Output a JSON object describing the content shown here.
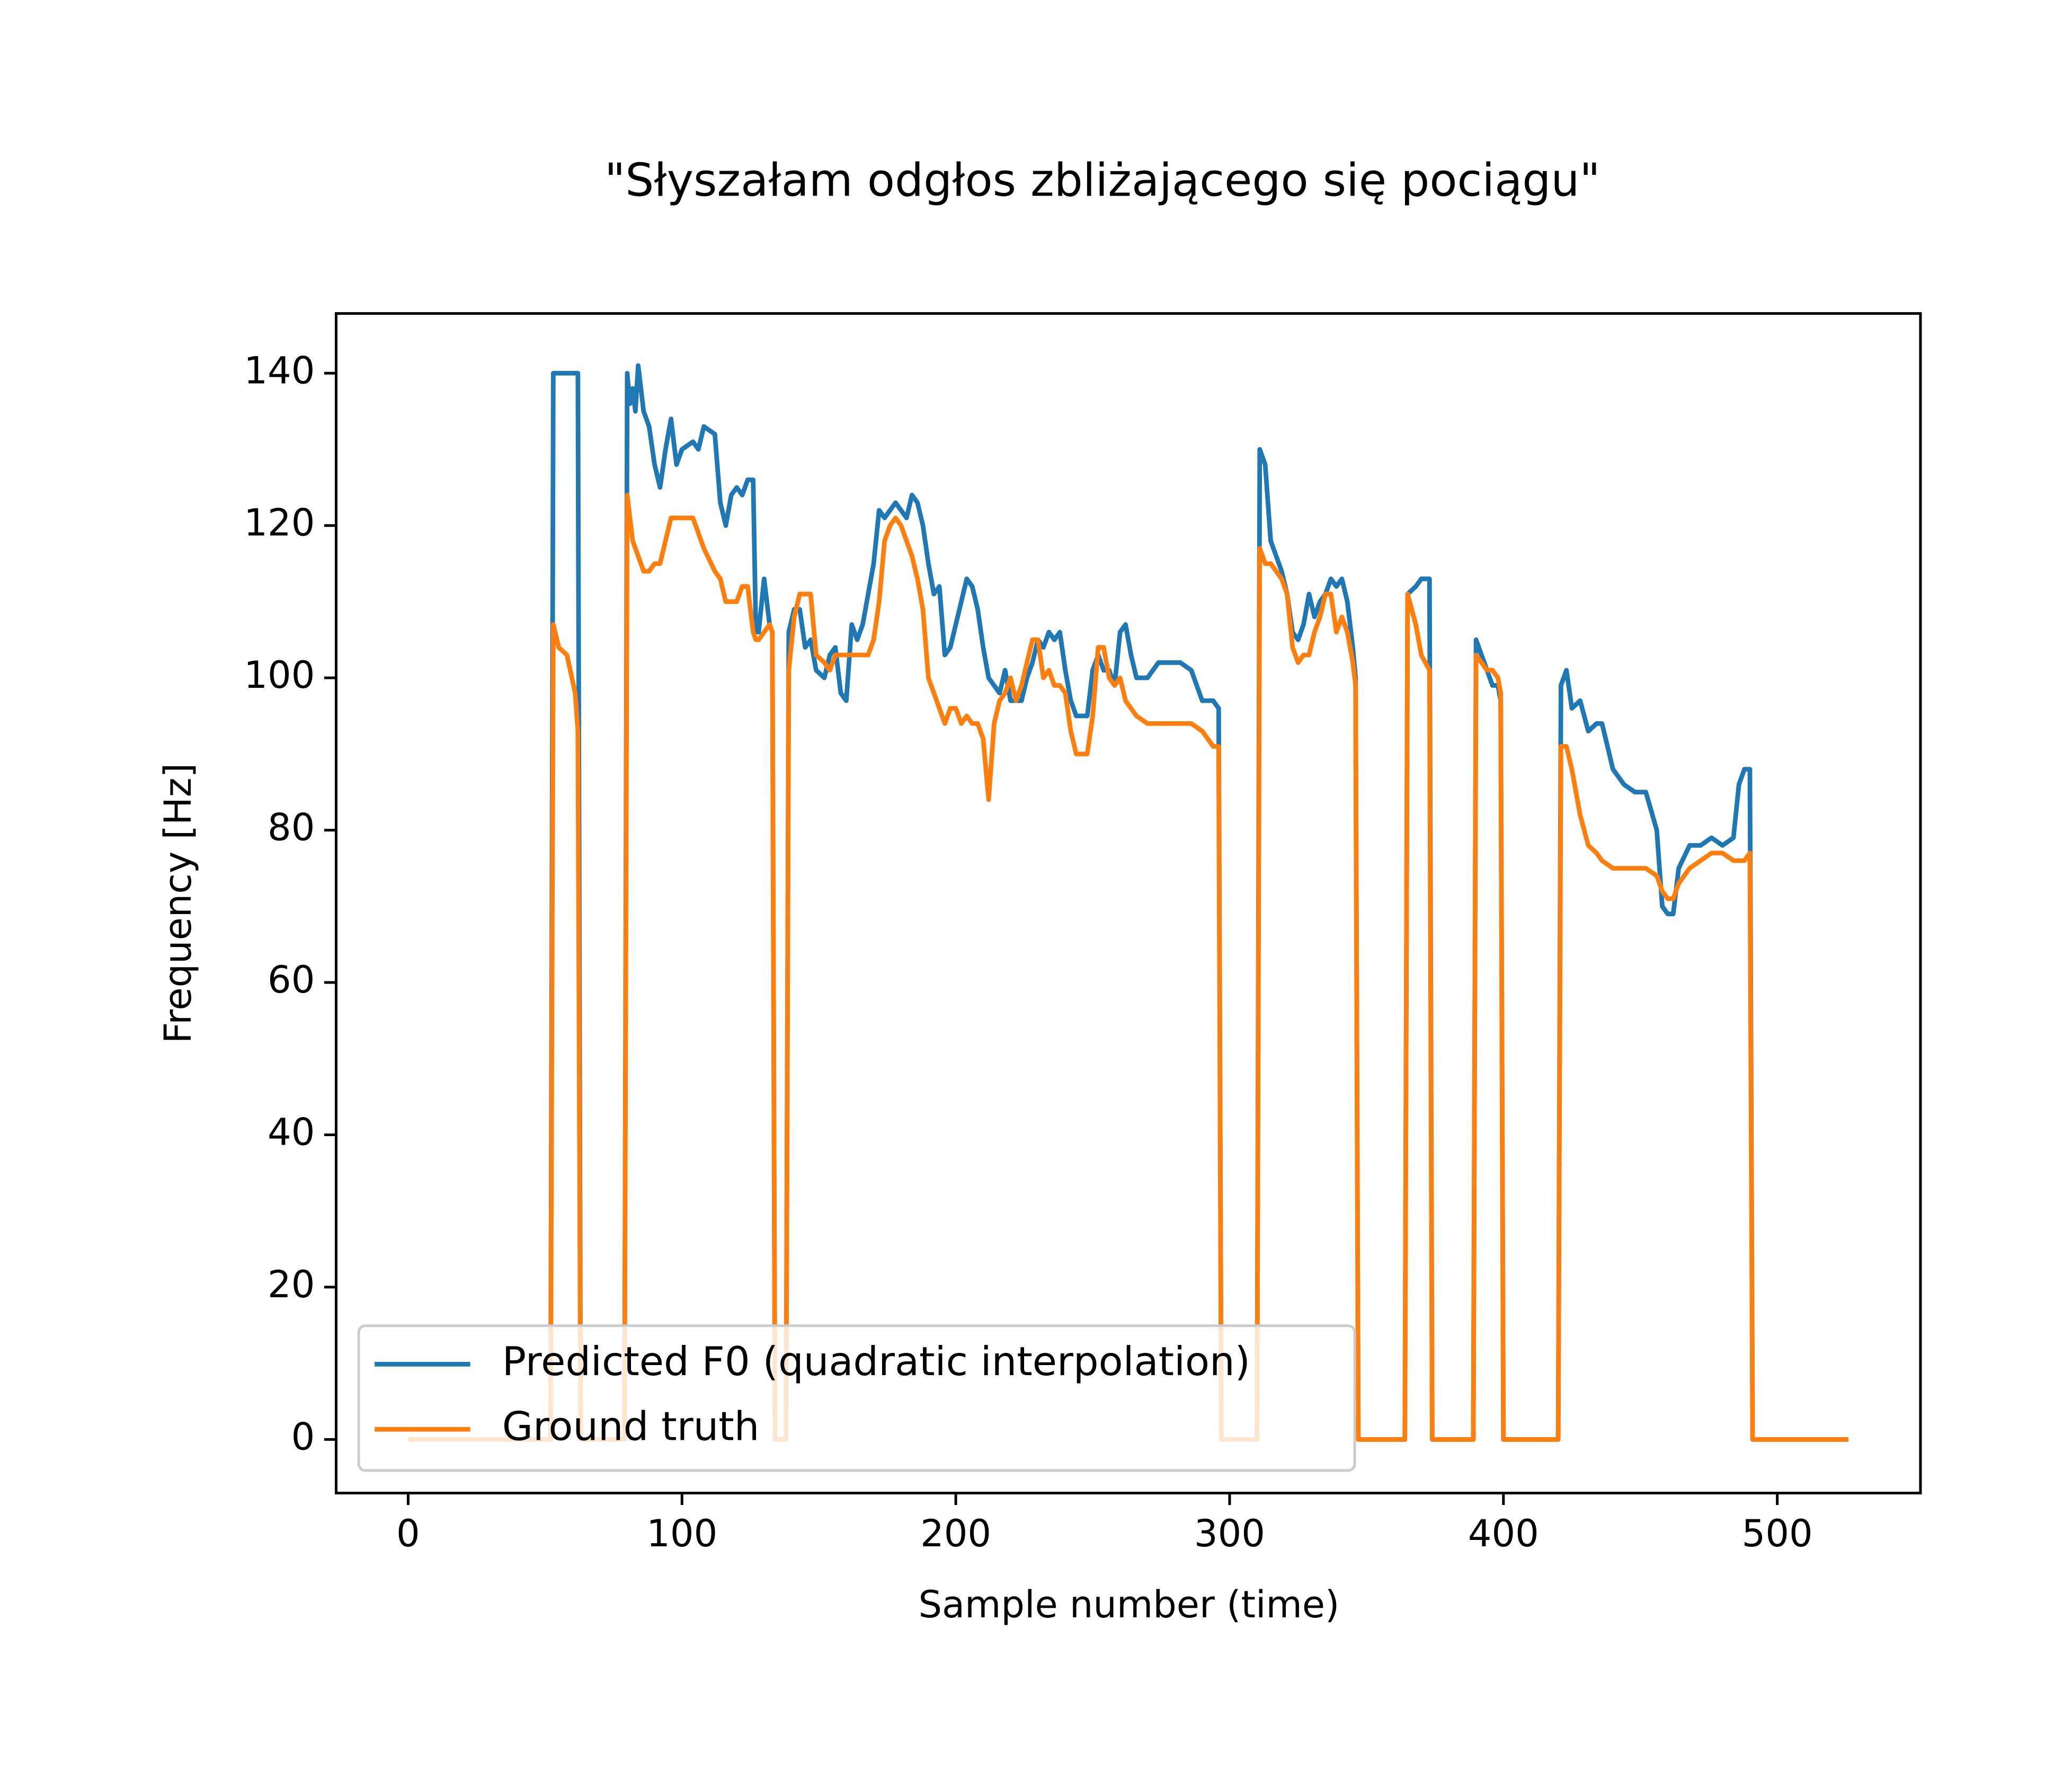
{
  "chart_data": {
    "type": "line",
    "title": "\"Słyszałam odgłos zbliżającego się pociągu\"",
    "xlabel": "Sample number (time)",
    "ylabel": "Frequency [Hz]",
    "xlim": [
      -26.3,
      552.3
    ],
    "ylim": [
      -7.04,
      147.84
    ],
    "xticks": [
      0,
      100,
      200,
      300,
      400,
      500
    ],
    "yticks": [
      0,
      20,
      40,
      60,
      80,
      100,
      120,
      140
    ],
    "legend": "lower left",
    "x": [
      0,
      52,
      53,
      55,
      58,
      61,
      62,
      63,
      79,
      80,
      81,
      82,
      83,
      84,
      86,
      88,
      90,
      92,
      94,
      96,
      98,
      100,
      104,
      106,
      108,
      112,
      114,
      116,
      118,
      120,
      122,
      124,
      126,
      127,
      128,
      130,
      132,
      133,
      134,
      138,
      139,
      141,
      143,
      145,
      147,
      149,
      152,
      154,
      156,
      158,
      160,
      162,
      164,
      166,
      168,
      170,
      172,
      174,
      176,
      178,
      180,
      182,
      184,
      186,
      188,
      190,
      192,
      194,
      196,
      198,
      200,
      202,
      204,
      206,
      208,
      210,
      212,
      214,
      216,
      218,
      220,
      222,
      224,
      226,
      228,
      230,
      232,
      234,
      236,
      238,
      240,
      242,
      244,
      246,
      248,
      250,
      252,
      254,
      256,
      258,
      260,
      262,
      264,
      266,
      270,
      274,
      278,
      282,
      286,
      290,
      294,
      296,
      297,
      310,
      311,
      313,
      315,
      317,
      319,
      321,
      323,
      325,
      327,
      329,
      331,
      333,
      335,
      337,
      339,
      341,
      343,
      345,
      346,
      347,
      364,
      365,
      368,
      370,
      373,
      374,
      389,
      390,
      392,
      394,
      396,
      398,
      399,
      400,
      420,
      421,
      423,
      425,
      428,
      431,
      434,
      436,
      440,
      444,
      448,
      452,
      456,
      458,
      460,
      462,
      464,
      468,
      472,
      476,
      480,
      484,
      486,
      488,
      490,
      491,
      526
    ],
    "series": [
      {
        "name": "Predicted F0 (quadratic interpolation)",
        "color": "#1f77b4",
        "values": [
          0,
          0,
          140,
          140,
          140,
          140,
          140,
          0,
          0,
          140,
          136,
          138,
          135,
          141,
          135,
          133,
          128,
          125,
          130,
          134,
          128,
          130,
          131,
          130,
          133,
          132,
          123,
          120,
          124,
          125,
          124,
          126,
          126,
          106,
          106,
          113,
          107,
          106,
          0,
          0,
          106,
          109,
          109,
          104,
          105,
          101,
          100,
          103,
          104,
          98,
          97,
          107,
          105,
          107,
          111,
          115,
          122,
          121,
          122,
          123,
          122,
          121,
          124,
          123,
          120,
          115,
          111,
          112,
          103,
          104,
          107,
          110,
          113,
          112,
          109,
          104,
          100,
          99,
          98,
          101,
          97,
          97,
          97,
          100,
          102,
          105,
          104,
          106,
          105,
          106,
          101,
          97,
          95,
          95,
          95,
          101,
          103,
          101,
          101,
          99,
          106,
          107,
          103,
          100,
          100,
          102,
          102,
          102,
          101,
          97,
          97,
          96,
          0,
          0,
          130,
          128,
          118,
          116,
          114,
          111,
          106,
          105,
          107,
          111,
          108,
          110,
          111,
          113,
          112,
          113,
          110,
          104,
          100,
          0,
          0,
          111,
          112,
          113,
          113,
          0,
          0,
          105,
          103,
          101,
          99,
          99,
          97,
          0,
          0,
          99,
          101,
          96,
          97,
          93,
          94,
          94,
          88,
          86,
          85,
          85,
          80,
          70,
          69,
          69,
          75,
          78,
          78,
          79,
          78,
          79,
          86,
          88,
          88,
          0,
          0
        ]
      },
      {
        "name": "Ground truth",
        "color": "#ff7f0e",
        "values": [
          0,
          0,
          107,
          104,
          103,
          98,
          93,
          0,
          0,
          124,
          121,
          118,
          117,
          116,
          114,
          114,
          115,
          115,
          118,
          121,
          121,
          121,
          121,
          119,
          117,
          114,
          113,
          110,
          110,
          110,
          112,
          112,
          106,
          105,
          105,
          106,
          107,
          106,
          0,
          0,
          101,
          108,
          111,
          111,
          111,
          103,
          102,
          101,
          103,
          103,
          103,
          103,
          103,
          103,
          103,
          105,
          110,
          118,
          120,
          121,
          120,
          118,
          116,
          113,
          109,
          100,
          98,
          96,
          94,
          96,
          96,
          94,
          95,
          94,
          94,
          92,
          84,
          94,
          97,
          98,
          100,
          97,
          99,
          102,
          105,
          105,
          100,
          101,
          99,
          99,
          98,
          93,
          90,
          90,
          90,
          95,
          104,
          104,
          100,
          99,
          100,
          97,
          96,
          95,
          94,
          94,
          94,
          94,
          94,
          93,
          91,
          91,
          0,
          0,
          117,
          115,
          115,
          114,
          113,
          111,
          104,
          102,
          103,
          103,
          106,
          108,
          111,
          111,
          106,
          108,
          106,
          102,
          99,
          0,
          0,
          111,
          107,
          103,
          101,
          0,
          0,
          103,
          102,
          101,
          101,
          100,
          98,
          0,
          0,
          91,
          91,
          88,
          82,
          78,
          77,
          76,
          75,
          75,
          75,
          75,
          74,
          72,
          71,
          71,
          73,
          75,
          76,
          77,
          77,
          76,
          76,
          76,
          77,
          0,
          0
        ]
      }
    ]
  }
}
